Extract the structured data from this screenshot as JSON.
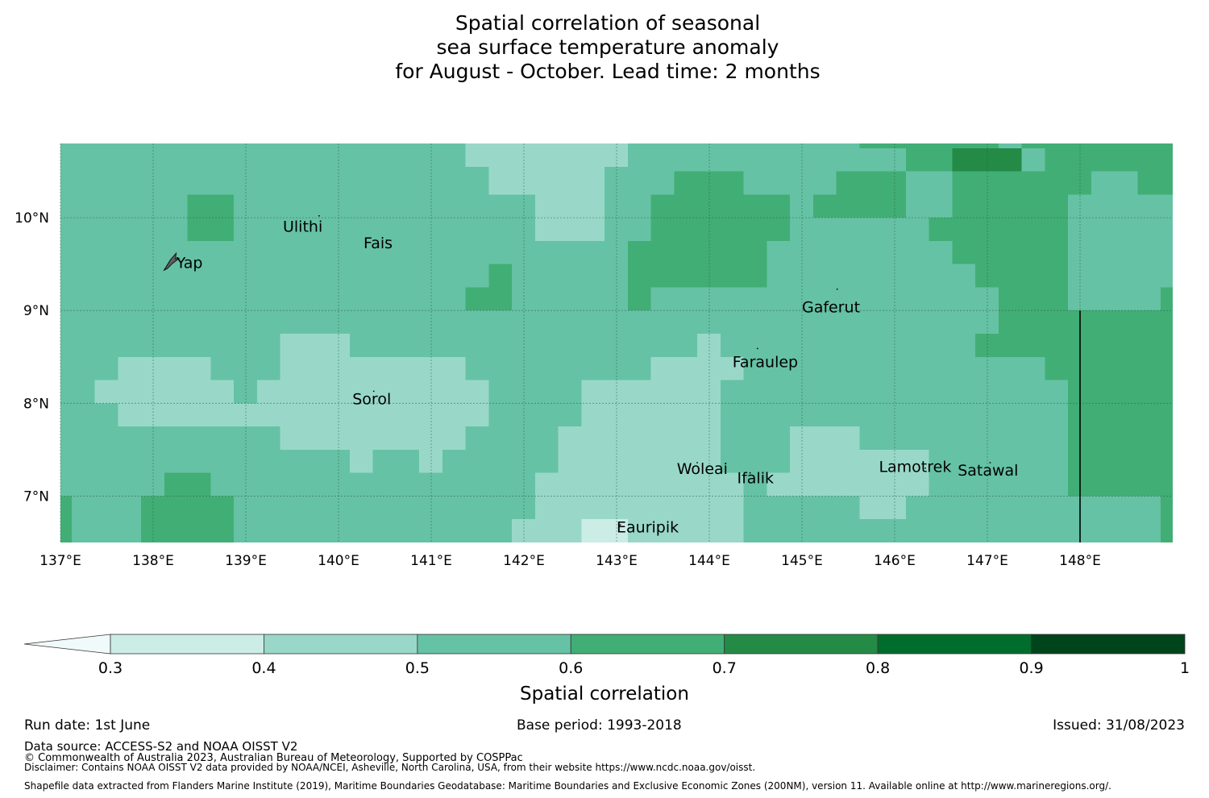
{
  "title_lines": [
    "Spatial correlation of seasonal",
    "sea surface temperature anomaly",
    "for August - October. Lead time: 2 months"
  ],
  "map": {
    "lon_range": [
      137.0,
      149.0
    ],
    "lat_range": [
      6.5,
      10.8
    ],
    "lon_ticks": [
      {
        "value": 137,
        "label": "137°E"
      },
      {
        "value": 138,
        "label": "138°E"
      },
      {
        "value": 139,
        "label": "139°E"
      },
      {
        "value": 140,
        "label": "140°E"
      },
      {
        "value": 141,
        "label": "141°E"
      },
      {
        "value": 142,
        "label": "142°E"
      },
      {
        "value": 143,
        "label": "143°E"
      },
      {
        "value": 144,
        "label": "144°E"
      },
      {
        "value": 145,
        "label": "145°E"
      },
      {
        "value": 146,
        "label": "146°E"
      },
      {
        "value": 147,
        "label": "147°E"
      },
      {
        "value": 148,
        "label": "148°E"
      }
    ],
    "lat_ticks": [
      {
        "value": 10,
        "label": "10°N"
      },
      {
        "value": 9,
        "label": "9°N"
      },
      {
        "value": 8,
        "label": "8°N"
      },
      {
        "value": 7,
        "label": "7°N"
      }
    ],
    "grid": true,
    "base_class": "0.5-0.6",
    "regions": [
      {
        "cls": "0.4-0.5",
        "lon": [
          141.37,
          143.12
        ],
        "lat": [
          10.8,
          10.55
        ]
      },
      {
        "cls": "0.4-0.5",
        "lon": [
          141.62,
          142.87
        ],
        "lat": [
          10.55,
          10.25
        ]
      },
      {
        "cls": "0.4-0.5",
        "lon": [
          142.12,
          142.87
        ],
        "lat": [
          10.25,
          9.75
        ]
      },
      {
        "cls": "0.6-0.7",
        "lon": [
          138.37,
          138.87
        ],
        "lat": [
          10.25,
          9.75
        ]
      },
      {
        "cls": "0.6-0.7",
        "lon": [
          141.62,
          141.87
        ],
        "lat": [
          9.5,
          9.0
        ]
      },
      {
        "cls": "0.6-0.7",
        "lon": [
          141.37,
          141.62
        ],
        "lat": [
          9.25,
          9.0
        ]
      },
      {
        "cls": "0.6-0.7",
        "lon": [
          143.62,
          144.37
        ],
        "lat": [
          10.5,
          10.25
        ]
      },
      {
        "cls": "0.6-0.7",
        "lon": [
          143.37,
          144.87
        ],
        "lat": [
          10.25,
          9.75
        ]
      },
      {
        "cls": "0.6-0.7",
        "lon": [
          143.12,
          144.62
        ],
        "lat": [
          9.75,
          9.25
        ]
      },
      {
        "cls": "0.6-0.7",
        "lon": [
          143.12,
          144.37
        ],
        "lat": [
          9.5,
          9.25
        ]
      },
      {
        "cls": "0.6-0.7",
        "lon": [
          143.12,
          143.37
        ],
        "lat": [
          9.25,
          9.0
        ]
      },
      {
        "cls": "0.6-0.7",
        "lon": [
          145.12,
          146.12
        ],
        "lat": [
          10.25,
          10.0
        ]
      },
      {
        "cls": "0.6-0.7",
        "lon": [
          145.37,
          146.12
        ],
        "lat": [
          10.5,
          10.25
        ]
      },
      {
        "cls": "0.6-0.7",
        "lon": [
          145.62,
          147.12
        ],
        "lat": [
          10.8,
          10.75
        ]
      },
      {
        "cls": "0.6-0.7",
        "lon": [
          146.12,
          146.62
        ],
        "lat": [
          10.75,
          10.5
        ]
      },
      {
        "cls": "0.7-0.8",
        "lon": [
          146.62,
          147.37
        ],
        "lat": [
          10.75,
          10.5
        ]
      },
      {
        "cls": "0.6-0.7",
        "lon": [
          147.37,
          147.87
        ],
        "lat": [
          10.8,
          10.75
        ]
      },
      {
        "cls": "0.6-0.7",
        "lon": [
          146.62,
          147.87
        ],
        "lat": [
          10.5,
          10.0
        ]
      },
      {
        "cls": "0.6-0.7",
        "lon": [
          146.37,
          147.62
        ],
        "lat": [
          10.0,
          9.75
        ]
      },
      {
        "cls": "0.6-0.7",
        "lon": [
          146.62,
          147.62
        ],
        "lat": [
          9.75,
          9.5
        ]
      },
      {
        "cls": "0.6-0.7",
        "lon": [
          146.87,
          147.62
        ],
        "lat": [
          9.5,
          9.25
        ]
      },
      {
        "cls": "0.6-0.7",
        "lon": [
          147.12,
          147.62
        ],
        "lat": [
          9.25,
          8.75
        ]
      },
      {
        "cls": "0.6-0.7",
        "lon": [
          146.87,
          147.62
        ],
        "lat": [
          8.75,
          8.5
        ]
      },
      {
        "cls": "0.6-0.7",
        "lon": [
          147.62,
          148.12
        ],
        "lat": [
          10.8,
          10.25
        ]
      },
      {
        "cls": "0.6-0.7",
        "lon": [
          148.12,
          149.0
        ],
        "lat": [
          10.8,
          10.5
        ]
      },
      {
        "cls": "0.6-0.7",
        "lon": [
          148.62,
          149.0
        ],
        "lat": [
          10.5,
          10.25
        ]
      },
      {
        "cls": "0.6-0.7",
        "lon": [
          147.62,
          147.87
        ],
        "lat": [
          10.25,
          9.0
        ]
      },
      {
        "cls": "0.6-0.7",
        "lon": [
          148.87,
          149.0
        ],
        "lat": [
          9.25,
          6.5
        ]
      },
      {
        "cls": "0.6-0.7",
        "lon": [
          147.62,
          148.87
        ],
        "lat": [
          9.0,
          8.25
        ]
      },
      {
        "cls": "0.6-0.7",
        "lon": [
          147.87,
          148.87
        ],
        "lat": [
          8.25,
          8.0
        ]
      },
      {
        "cls": "0.6-0.7",
        "lon": [
          147.87,
          148.87
        ],
        "lat": [
          8.0,
          7.0
        ]
      },
      {
        "cls": "0.4-0.5",
        "lon": [
          137.62,
          138.62
        ],
        "lat": [
          8.5,
          8.25
        ]
      },
      {
        "cls": "0.4-0.5",
        "lon": [
          137.37,
          138.87
        ],
        "lat": [
          8.25,
          8.0
        ]
      },
      {
        "cls": "0.4-0.5",
        "lon": [
          137.62,
          140.12
        ],
        "lat": [
          8.0,
          7.75
        ]
      },
      {
        "cls": "0.4-0.5",
        "lon": [
          139.12,
          141.62
        ],
        "lat": [
          8.25,
          8.0
        ]
      },
      {
        "cls": "0.4-0.5",
        "lon": [
          139.37,
          140.12
        ],
        "lat": [
          8.75,
          8.25
        ]
      },
      {
        "cls": "0.4-0.5",
        "lon": [
          140.12,
          141.37
        ],
        "lat": [
          8.5,
          8.25
        ]
      },
      {
        "cls": "0.4-0.5",
        "lon": [
          140.12,
          141.62
        ],
        "lat": [
          8.0,
          7.75
        ]
      },
      {
        "cls": "0.4-0.5",
        "lon": [
          139.37,
          141.37
        ],
        "lat": [
          7.75,
          7.5
        ]
      },
      {
        "cls": "0.4-0.5",
        "lon": [
          140.12,
          140.37
        ],
        "lat": [
          7.5,
          7.25
        ]
      },
      {
        "cls": "0.4-0.5",
        "lon": [
          140.87,
          141.12
        ],
        "lat": [
          7.5,
          7.25
        ]
      },
      {
        "cls": "0.6-0.7",
        "lon": [
          138.12,
          138.62
        ],
        "lat": [
          7.25,
          7.0
        ]
      },
      {
        "cls": "0.6-0.7",
        "lon": [
          137.87,
          138.87
        ],
        "lat": [
          7.0,
          6.5
        ]
      },
      {
        "cls": "0.6-0.7",
        "lon": [
          137.0,
          137.12
        ],
        "lat": [
          7.0,
          6.5
        ]
      },
      {
        "cls": "0.4-0.5",
        "lon": [
          143.37,
          144.12
        ],
        "lat": [
          8.5,
          8.25
        ]
      },
      {
        "cls": "0.4-0.5",
        "lon": [
          143.87,
          144.12
        ],
        "lat": [
          8.75,
          8.5
        ]
      },
      {
        "cls": "0.4-0.5",
        "lon": [
          144.12,
          144.37
        ],
        "lat": [
          8.5,
          8.25
        ]
      },
      {
        "cls": "0.4-0.5",
        "lon": [
          142.62,
          144.12
        ],
        "lat": [
          8.25,
          7.75
        ]
      },
      {
        "cls": "0.4-0.5",
        "lon": [
          142.37,
          144.12
        ],
        "lat": [
          7.75,
          7.25
        ]
      },
      {
        "cls": "0.4-0.5",
        "lon": [
          142.12,
          144.37
        ],
        "lat": [
          7.25,
          6.75
        ]
      },
      {
        "cls": "0.4-0.5",
        "lon": [
          141.87,
          144.37
        ],
        "lat": [
          6.75,
          6.5
        ]
      },
      {
        "cls": "0.3-0.4",
        "lon": [
          142.62,
          143.12
        ],
        "lat": [
          6.75,
          6.5
        ]
      },
      {
        "cls": "0.4-0.5",
        "lon": [
          144.87,
          145.62
        ],
        "lat": [
          7.75,
          7.25
        ]
      },
      {
        "cls": "0.4-0.5",
        "lon": [
          144.87,
          146.37
        ],
        "lat": [
          7.5,
          7.25
        ]
      },
      {
        "cls": "0.4-0.5",
        "lon": [
          144.62,
          146.37
        ],
        "lat": [
          7.25,
          7.0
        ]
      },
      {
        "cls": "0.4-0.5",
        "lon": [
          145.62,
          146.12
        ],
        "lat": [
          7.0,
          6.75
        ]
      }
    ],
    "boundary_line": {
      "lon": 148.0,
      "lat": [
        9.0,
        6.5
      ]
    },
    "places": [
      {
        "name": "Ulithi",
        "lon": 139.4,
        "lat": 9.85,
        "mlon": 139.79,
        "mlat": 10.02
      },
      {
        "name": "Fais",
        "lon": 140.27,
        "lat": 9.67,
        "mlon": 140.52,
        "mlat": 9.76
      },
      {
        "name": "Yap",
        "lon": 138.25,
        "lat": 9.46,
        "mlon": 138.17,
        "mlat": 9.53
      },
      {
        "name": "Gaferut",
        "lon": 145.0,
        "lat": 8.98,
        "mlon": 145.38,
        "mlat": 9.23
      },
      {
        "name": "Faraulep",
        "lon": 144.25,
        "lat": 8.39,
        "mlon": 144.52,
        "mlat": 8.59
      },
      {
        "name": "Sorol",
        "lon": 140.15,
        "lat": 7.99,
        "mlon": 140.38,
        "mlat": 8.13
      },
      {
        "name": "Woleai",
        "lon": 143.65,
        "lat": 7.24,
        "mlon": 143.87,
        "mlat": 7.36
      },
      {
        "name": "Ifalik",
        "lon": 144.3,
        "lat": 7.14,
        "mlon": 144.44,
        "mlat": 7.25
      },
      {
        "name": "Lamotrek",
        "lon": 145.83,
        "lat": 7.26,
        "mlon": 146.33,
        "mlat": 7.3
      },
      {
        "name": "Satawal",
        "lon": 146.68,
        "lat": 7.22,
        "mlon": 147.03,
        "mlat": 7.36
      },
      {
        "name": "Eauripik",
        "lon": 143.0,
        "lat": 6.61,
        "mlon": 143.04,
        "mlat": 6.69
      }
    ]
  },
  "colorbar": {
    "title": "Spatial correlation",
    "extend": "min",
    "under_color": "#f0fafa",
    "bins": [
      {
        "low": 0.3,
        "high": 0.4,
        "color": "#ccece6"
      },
      {
        "low": 0.4,
        "high": 0.5,
        "color": "#99d8c9"
      },
      {
        "low": 0.5,
        "high": 0.6,
        "color": "#66c2a4"
      },
      {
        "low": 0.6,
        "high": 0.7,
        "color": "#41ae76"
      },
      {
        "low": 0.7,
        "high": 0.8,
        "color": "#238b45"
      },
      {
        "low": 0.8,
        "high": 0.9,
        "color": "#006d2c"
      },
      {
        "low": 0.9,
        "high": 1.0,
        "color": "#00441b"
      }
    ],
    "tick_labels": [
      "0.3",
      "0.4",
      "0.5",
      "0.6",
      "0.7",
      "0.8",
      "0.9",
      "1"
    ]
  },
  "footer": {
    "run_date": "Run date: 1st June",
    "base_period": "Base period: 1993-2018",
    "issued": "Issued: 31/08/2023",
    "data_source": "Data source: ACCESS-S2 and NOAA OISST V2",
    "copyright": "© Commonwealth of Australia 2023, Australian Bureau of Meteorology, Supported by COSPPac",
    "disclaimer": "Disclaimer: Contains NOAA OISST V2 data provided by NOAA/NCEI, Asheville, North Carolina, USA, from their website https://www.ncdc.noaa.gov/oisst.",
    "shapefile": "Shapefile data extracted from Flanders Marine Institute (2019), Maritime Boundaries Geodatabase: Maritime Boundaries and Exclusive Economic Zones (200NM), version 11. Available online at http://www.marineregions.org/."
  }
}
